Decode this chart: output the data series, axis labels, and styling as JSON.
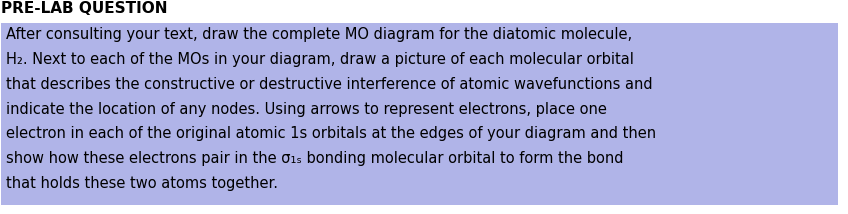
{
  "title": "PRE-LAB QUESTION",
  "body_lines": [
    "After consulting your text, draw the complete MO diagram for the diatomic molecule,",
    "H₂. Next to each of the MOs in your diagram, draw a picture of each molecular orbital",
    "that describes the constructive or destructive interference of atomic wavefunctions and",
    "indicate the location of any nodes. Using arrows to represent electrons, place one",
    "electron in each of the original atomic 1s orbitals at the edges of your diagram and then",
    "show how these electrons pair in the σ₁ₛ bonding molecular orbital to form the bond",
    "that holds these two atoms together."
  ],
  "highlight_color": "#b0b4e8",
  "title_color": "#000000",
  "text_color": "#000000",
  "background_color": "#ffffff",
  "title_fontsize": 11,
  "body_fontsize": 10.5,
  "fig_width": 8.48,
  "fig_height": 2.14
}
